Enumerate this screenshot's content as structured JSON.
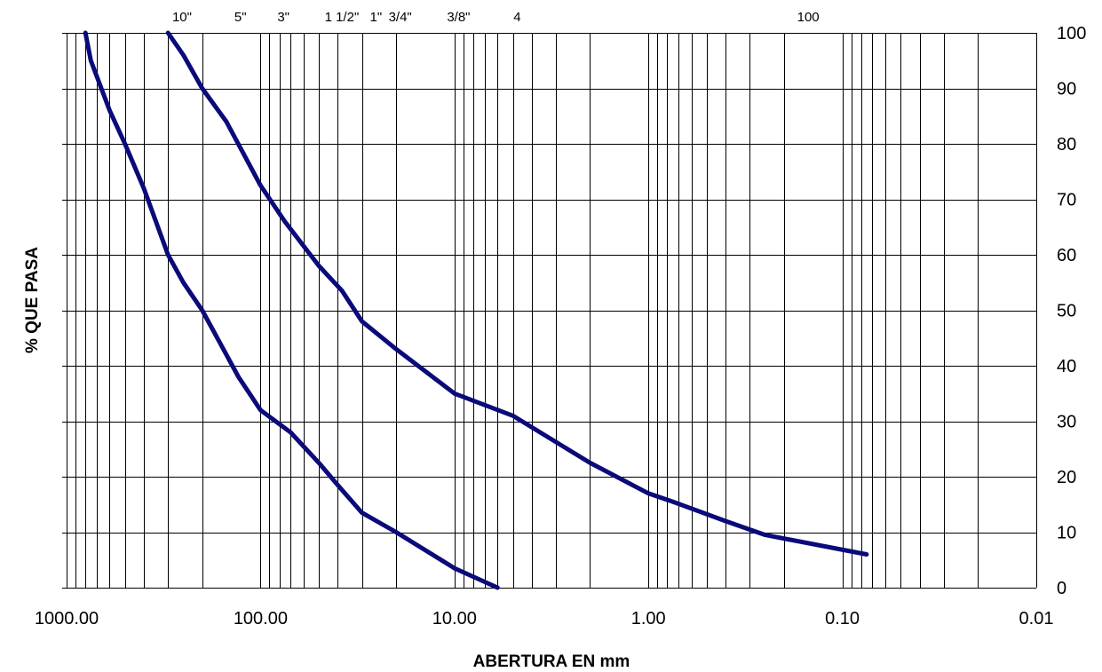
{
  "chart_data": {
    "type": "line",
    "title": "",
    "xlabel": "ABERTURA EN mm",
    "ylabel": "% QUE PASA",
    "x_scale": "log",
    "x_reversed": true,
    "xlim": [
      1000,
      0.01
    ],
    "ylim": [
      0,
      100
    ],
    "grid": true,
    "x_tick_labels": [
      "1000.00",
      "100.00",
      "10.00",
      "1.00",
      "0.10",
      "0.01"
    ],
    "x_tick_values": [
      1000,
      100,
      10,
      1,
      0.1,
      0.01
    ],
    "y_ticks": [
      0,
      10,
      20,
      30,
      40,
      50,
      60,
      70,
      80,
      90,
      100
    ],
    "y_axis_position": "right",
    "sieve_labels": [
      {
        "label": "10\"",
        "size": 254
      },
      {
        "label": "5\"",
        "size": 127
      },
      {
        "label": "3\"",
        "size": 76.2
      },
      {
        "label": "1 1/2\"",
        "size": 38.1
      },
      {
        "label": "1\"",
        "size": 25.4
      },
      {
        "label": "3/4\"",
        "size": 19.05
      },
      {
        "label": "3/8\"",
        "size": 9.525
      },
      {
        "label": "4",
        "size": 4.75
      },
      {
        "label": "100",
        "size": 0.15
      }
    ],
    "series_color": "#0a0a7a",
    "series": [
      {
        "x": [
          800,
          750,
          600,
          500,
          400,
          300,
          250,
          200,
          130,
          100,
          70,
          50,
          40,
          30,
          20,
          10,
          6
        ],
        "values": [
          100,
          95,
          86,
          80,
          72,
          60,
          55,
          50,
          38,
          32,
          28,
          22.5,
          18.5,
          13.5,
          10,
          3.5,
          0
        ]
      },
      {
        "x": [
          300,
          250,
          200,
          150,
          100,
          75,
          50,
          38,
          30,
          20,
          10,
          5,
          2,
          1,
          0.75,
          0.4,
          0.25,
          0.075
        ],
        "values": [
          100,
          96,
          90,
          84,
          72.5,
          66,
          58,
          53.5,
          48,
          43,
          35,
          31,
          22.5,
          17,
          15.5,
          12,
          9.5,
          6
        ]
      }
    ]
  }
}
